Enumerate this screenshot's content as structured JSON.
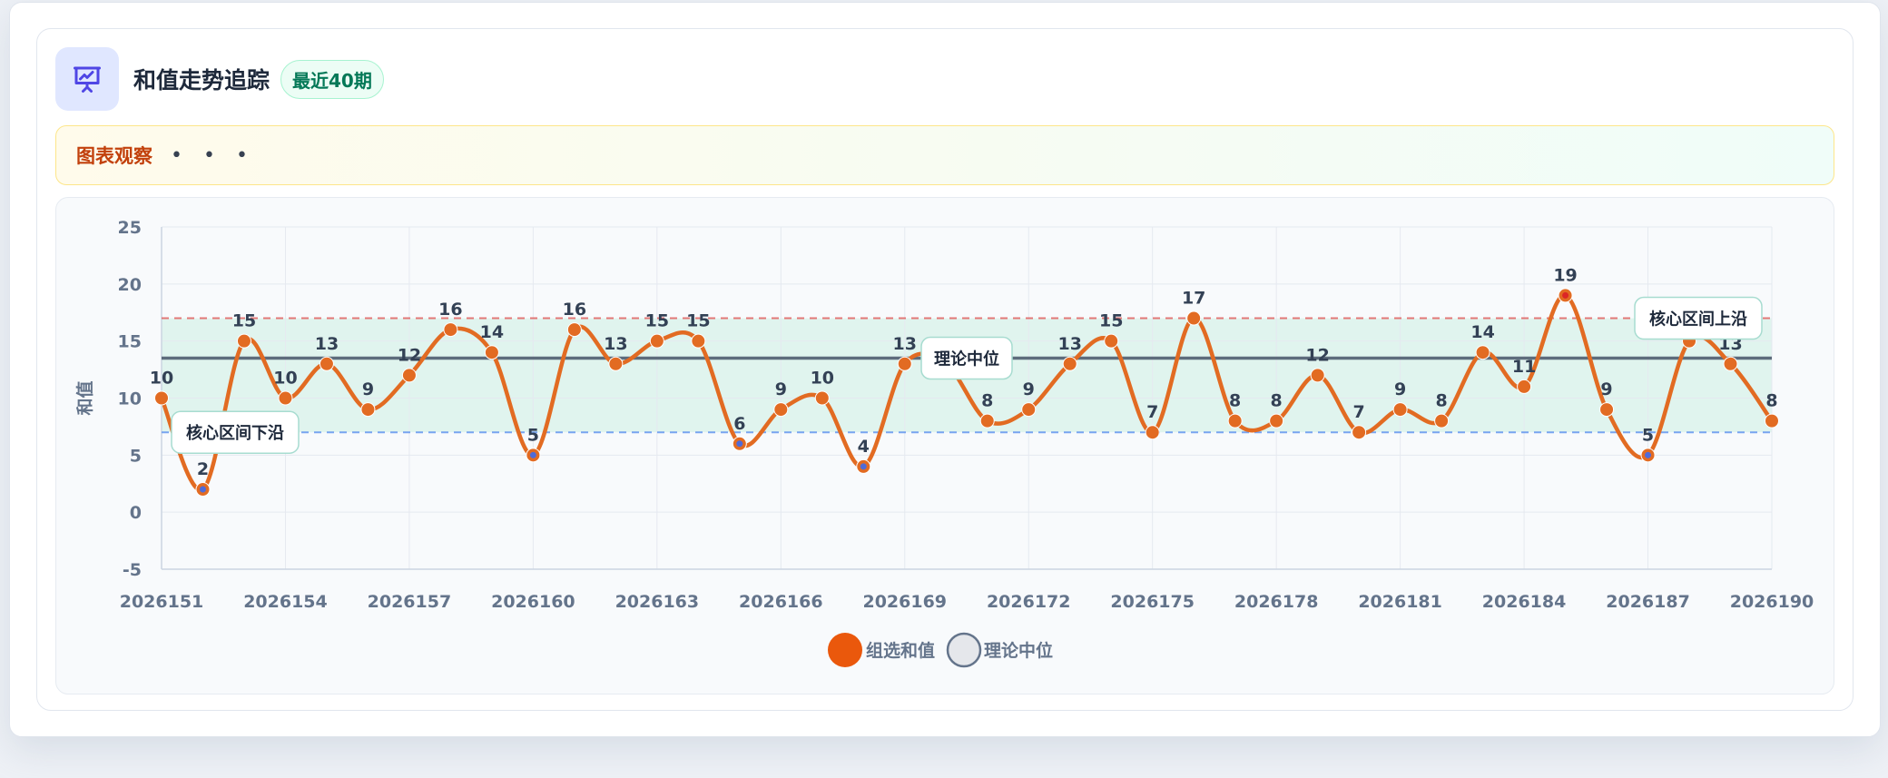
{
  "header": {
    "title": "和值走势追踪",
    "badge": "最近40期"
  },
  "observation": {
    "label": "图表观察",
    "dots": "• • •"
  },
  "colors": {
    "line": "#e26b22",
    "median": "#475569",
    "upper": "#e05858",
    "lower": "#6b9bef",
    "band": "#d1f0e4"
  },
  "chart_data": {
    "type": "line",
    "title": "",
    "xlabel": "",
    "ylabel": "和值",
    "ylim": [
      -5,
      25
    ],
    "yticks": [
      25,
      20,
      15,
      10,
      5,
      0,
      -5
    ],
    "xtick_labels": [
      "2026151",
      "2026154",
      "2026157",
      "2026160",
      "2026163",
      "2026166",
      "2026169",
      "2026172",
      "2026175",
      "2026178",
      "2026181",
      "2026184",
      "2026187",
      "2026190"
    ],
    "x": [
      "2026151",
      "2026152",
      "2026153",
      "2026154",
      "2026155",
      "2026156",
      "2026157",
      "2026158",
      "2026159",
      "2026160",
      "2026161",
      "2026162",
      "2026163",
      "2026164",
      "2026165",
      "2026166",
      "2026167",
      "2026168",
      "2026169",
      "2026170",
      "2026171",
      "2026172",
      "2026173",
      "2026174",
      "2026175",
      "2026176",
      "2026177",
      "2026178",
      "2026179",
      "2026180",
      "2026181",
      "2026182",
      "2026183",
      "2026184",
      "2026185",
      "2026186",
      "2026187",
      "2026188",
      "2026189",
      "2026190"
    ],
    "series": [
      {
        "name": "组选和值",
        "values": [
          10,
          2,
          15,
          10,
          13,
          9,
          12,
          16,
          14,
          5,
          16,
          13,
          15,
          15,
          6,
          9,
          10,
          4,
          13,
          13,
          8,
          9,
          13,
          15,
          7,
          17,
          8,
          8,
          12,
          7,
          9,
          8,
          14,
          11,
          19,
          9,
          5,
          15,
          13,
          8
        ]
      }
    ],
    "theoretical_median": 13.5,
    "core_band": [
      7,
      17
    ],
    "annotations": {
      "lower": "核心区间下沿",
      "median": "理论中位",
      "upper": "核心区间上沿"
    },
    "legend": [
      {
        "label": "组选和值",
        "color": "#ea580c"
      },
      {
        "label": "理论中位",
        "color": "#e5e7eb"
      }
    ],
    "legend_position": "bottom",
    "grid": true
  }
}
